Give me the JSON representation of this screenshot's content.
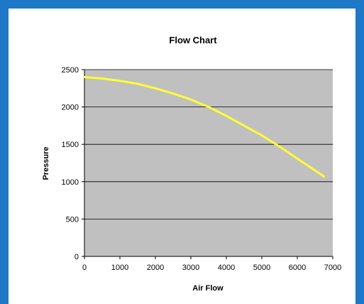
{
  "chart_data": {
    "type": "line",
    "title": "Flow Chart",
    "xlabel": "Air Flow",
    "ylabel": "Pressure",
    "xlim": [
      0,
      7000
    ],
    "ylim": [
      0,
      2500
    ],
    "x_ticks": [
      "0",
      "1000",
      "2000",
      "3000",
      "4000",
      "5000",
      "6000",
      "7000"
    ],
    "y_ticks": [
      "0",
      "500",
      "1000",
      "1500",
      "2000",
      "2500"
    ],
    "grid": "horizontal",
    "legend": "none",
    "colors": {
      "frame": "#1e78c8",
      "plot_background": "#c0c0c0",
      "gridline": "#000000",
      "line": "#ffff33"
    },
    "series": [
      {
        "x": [
          0,
          500,
          1000,
          1500,
          2000,
          2500,
          3000,
          3500,
          4000,
          4500,
          5000,
          5500,
          6000,
          6500,
          6750
        ],
        "y": [
          2400,
          2380,
          2350,
          2310,
          2250,
          2180,
          2100,
          2000,
          1880,
          1750,
          1620,
          1470,
          1310,
          1150,
          1070
        ]
      }
    ]
  }
}
